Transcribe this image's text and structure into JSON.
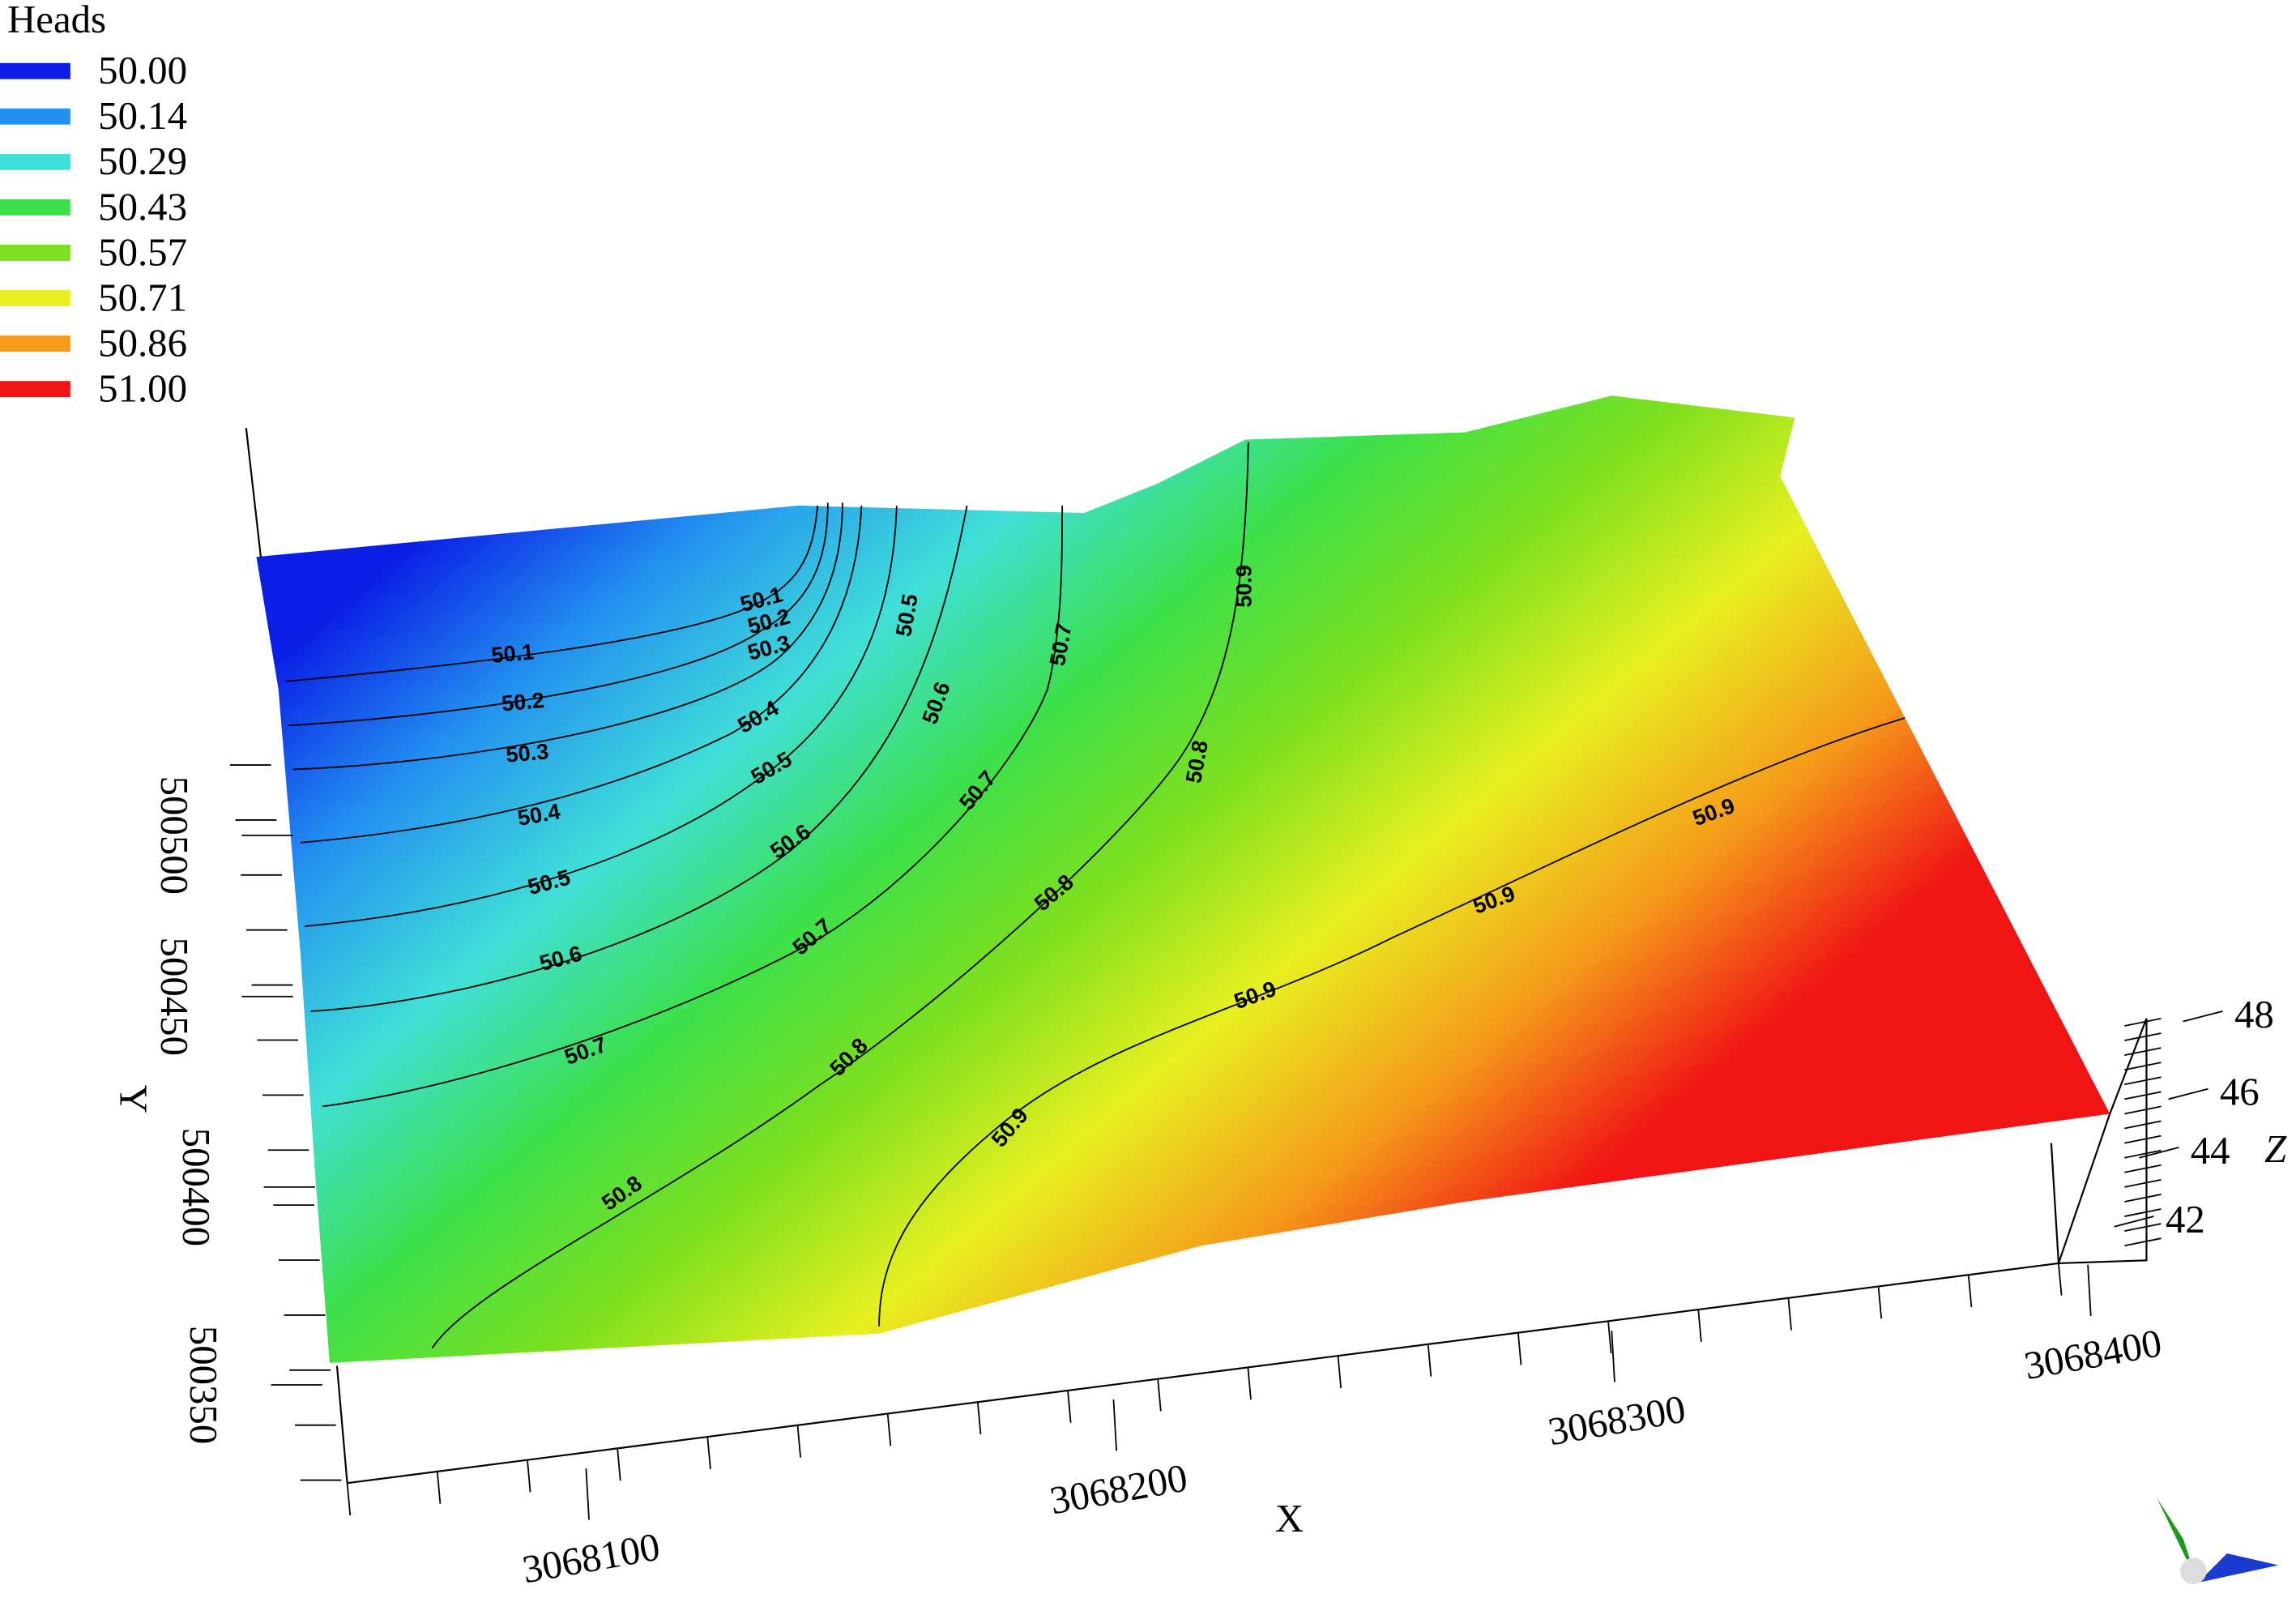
{
  "chart_data": {
    "type": "surface3d",
    "legend": {
      "title": "Heads",
      "items": [
        {
          "value": 50,
          "label": "50.00",
          "color": "#0a1ee6"
        },
        {
          "value": 50.14,
          "label": "50.14",
          "color": "#2391f0"
        },
        {
          "value": 50.29,
          "label": "50.29",
          "color": "#40e0d8"
        },
        {
          "value": 50.43,
          "label": "50.43",
          "color": "#3ce04a"
        },
        {
          "value": 50.57,
          "label": "50.57",
          "color": "#7ee01e"
        },
        {
          "value": 50.71,
          "label": "50.71",
          "color": "#e8f020"
        },
        {
          "value": 50.86,
          "label": "50.86",
          "color": "#f59a1a"
        },
        {
          "value": 51,
          "label": "51.00",
          "color": "#f01414"
        }
      ]
    },
    "x_label": "X",
    "y_label": "Y",
    "z_label": "Z",
    "xticks": [
      3068100,
      3068200,
      3068300,
      3068400
    ],
    "yticks": [
      500350,
      500400,
      500450,
      500500
    ],
    "zticks": [
      42,
      44,
      46,
      48
    ],
    "contour_labels": [
      50.1,
      50.2,
      50.3,
      50.4,
      50.5,
      50.6,
      50.7,
      50.8,
      50.1,
      50.2,
      50.3,
      50.4,
      50.5,
      50.6,
      50.7,
      50.8,
      50.5,
      50.6,
      50.7,
      50.8,
      50.9,
      50.7,
      50.8,
      50.9,
      50.9,
      50.9,
      50.9
    ]
  }
}
